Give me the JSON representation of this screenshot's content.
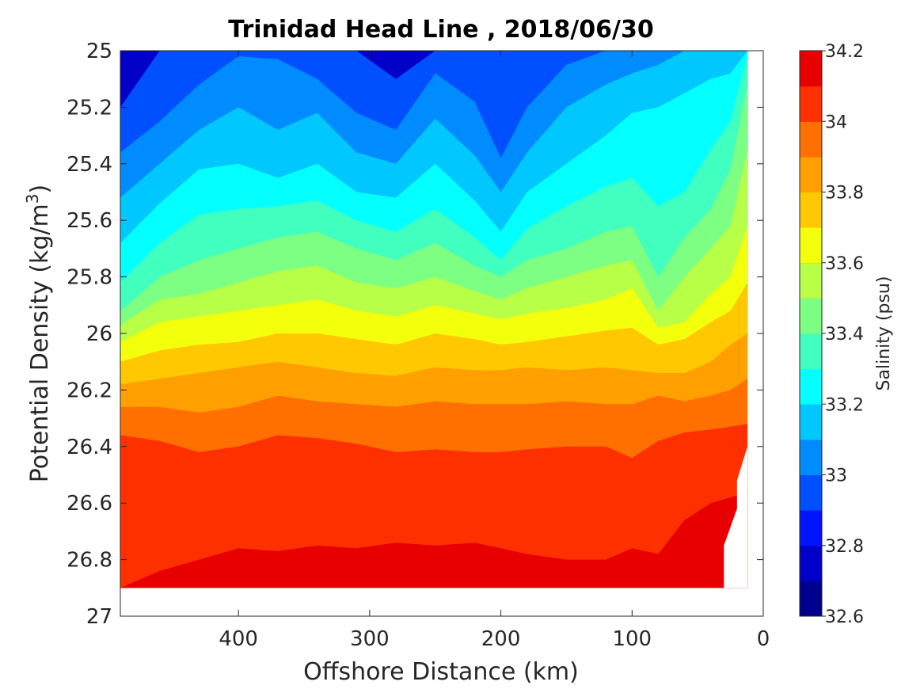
{
  "chart_data": {
    "type": "heatmap",
    "subtype": "filled-contour",
    "title": "Trinidad Head Line , 2018/06/30",
    "xlabel": "Offshore Distance (km)",
    "ylabel": "Potential Density (kg/m",
    "ylabel_sup": "3",
    "ylabel_close": ")",
    "x_reversed": true,
    "y_reversed": true,
    "xlim": [
      490,
      0
    ],
    "ylim": [
      25,
      27
    ],
    "xticks": [
      400,
      300,
      200,
      100,
      0
    ],
    "xtick_labels": [
      "400",
      "300",
      "200",
      "100",
      "0"
    ],
    "yticks": [
      25,
      25.2,
      25.4,
      25.6,
      25.8,
      26,
      26.2,
      26.4,
      26.6,
      26.8,
      27
    ],
    "ytick_labels": [
      "25",
      "25.2",
      "25.4",
      "25.6",
      "25.8",
      "26",
      "26.2",
      "26.4",
      "26.6",
      "26.8",
      "27"
    ],
    "data_extent": {
      "x_max": 490,
      "x_min": 12,
      "density_min": 25.0,
      "density_max": 26.9
    },
    "colorbar": {
      "label": "Salinity (psu)",
      "min": 32.6,
      "max": 34.2,
      "step": 0.1,
      "ticks": [
        32.6,
        32.8,
        33,
        33.2,
        33.4,
        33.6,
        33.8,
        34,
        34.2
      ],
      "tick_labels": [
        "32.6",
        "32.8",
        "33",
        "33.2",
        "33.4",
        "33.6",
        "33.8",
        "34",
        "34.2"
      ],
      "colors": [
        "#00008f",
        "#0000c8",
        "#0014ff",
        "#0050ff",
        "#008cff",
        "#00c8ff",
        "#04ffff",
        "#40ffbf",
        "#7cff83",
        "#b8ff47",
        "#f4ff0b",
        "#ffc800",
        "#ffa000",
        "#ff7000",
        "#ff3000",
        "#e80000",
        "#a80000"
      ]
    },
    "sample_x_km": [
      490,
      460,
      430,
      400,
      370,
      340,
      310,
      280,
      250,
      220,
      200,
      180,
      150,
      120,
      100,
      80,
      60,
      40,
      25,
      12
    ],
    "contours": [
      {
        "level": 32.8,
        "density": [
          25.2,
          25.0,
          25.0,
          25.0,
          25.0,
          25.0,
          25.0,
          25.1,
          25.0,
          25.0,
          25.0,
          25.0,
          25.0,
          25.0,
          25.0,
          25.0,
          25.0,
          25.0,
          25.0,
          25.0
        ]
      },
      {
        "level": 32.9,
        "density": [
          25.36,
          25.25,
          25.12,
          25.02,
          25.03,
          25.1,
          25.22,
          25.28,
          25.08,
          25.18,
          25.38,
          25.2,
          25.05,
          25.0,
          25.0,
          25.0,
          25.0,
          25.0,
          25.0,
          25.0
        ]
      },
      {
        "level": 33.0,
        "density": [
          25.52,
          25.4,
          25.28,
          25.2,
          25.28,
          25.22,
          25.36,
          25.4,
          25.24,
          25.37,
          25.5,
          25.36,
          25.2,
          25.12,
          25.08,
          25.05,
          25.0,
          25.0,
          25.0,
          25.0
        ]
      },
      {
        "level": 33.1,
        "density": [
          25.68,
          25.54,
          25.42,
          25.4,
          25.45,
          25.4,
          25.5,
          25.52,
          25.4,
          25.53,
          25.64,
          25.5,
          25.4,
          25.3,
          25.22,
          25.2,
          25.15,
          25.1,
          25.08,
          25.0
        ]
      },
      {
        "level": 33.2,
        "density": [
          25.82,
          25.68,
          25.58,
          25.56,
          25.55,
          25.53,
          25.6,
          25.64,
          25.56,
          25.66,
          25.74,
          25.63,
          25.55,
          25.48,
          25.45,
          25.55,
          25.5,
          25.35,
          25.25,
          25.02
        ]
      },
      {
        "level": 33.3,
        "density": [
          25.92,
          25.8,
          25.74,
          25.7,
          25.66,
          25.64,
          25.7,
          25.74,
          25.68,
          25.76,
          25.8,
          25.74,
          25.7,
          25.64,
          25.62,
          25.8,
          25.66,
          25.56,
          25.42,
          25.12
        ]
      },
      {
        "level": 33.4,
        "density": [
          25.97,
          25.88,
          25.86,
          25.82,
          25.78,
          25.76,
          25.82,
          25.84,
          25.8,
          25.85,
          25.88,
          25.84,
          25.8,
          25.76,
          25.74,
          25.92,
          25.8,
          25.7,
          25.62,
          25.35
        ]
      },
      {
        "level": 33.5,
        "density": [
          26.03,
          25.96,
          25.94,
          25.92,
          25.9,
          25.88,
          25.92,
          25.94,
          25.9,
          25.93,
          25.95,
          25.93,
          25.91,
          25.88,
          25.84,
          25.98,
          25.96,
          25.86,
          25.8,
          25.62
        ]
      },
      {
        "level": 33.6,
        "density": [
          26.1,
          26.06,
          26.04,
          26.03,
          26.0,
          26.0,
          26.02,
          26.04,
          26.0,
          26.02,
          26.04,
          26.03,
          26.01,
          25.99,
          25.98,
          26.04,
          26.02,
          25.96,
          25.92,
          25.82
        ]
      },
      {
        "level": 33.7,
        "density": [
          26.18,
          26.16,
          26.14,
          26.12,
          26.1,
          26.12,
          26.14,
          26.15,
          26.12,
          26.13,
          26.13,
          26.12,
          26.13,
          26.12,
          26.13,
          26.14,
          26.14,
          26.1,
          26.04,
          26.0
        ]
      },
      {
        "level": 33.8,
        "density": [
          26.26,
          26.26,
          26.28,
          26.26,
          26.22,
          26.24,
          26.25,
          26.26,
          26.24,
          26.25,
          26.25,
          26.25,
          26.24,
          26.25,
          26.25,
          26.22,
          26.24,
          26.22,
          26.2,
          26.16
        ]
      },
      {
        "level": 33.9,
        "density": [
          26.36,
          26.38,
          26.42,
          26.4,
          26.36,
          26.37,
          26.39,
          26.42,
          26.41,
          26.42,
          26.42,
          26.41,
          26.4,
          26.4,
          26.44,
          26.38,
          26.35,
          26.34,
          26.33,
          26.32
        ]
      },
      {
        "level": 34.0,
        "density": [
          26.9,
          26.84,
          26.8,
          26.76,
          26.77,
          26.75,
          26.76,
          26.74,
          26.75,
          26.74,
          26.76,
          26.78,
          26.8,
          26.8,
          26.76,
          26.78,
          26.66,
          26.6,
          26.58,
          26.56
        ]
      }
    ]
  }
}
